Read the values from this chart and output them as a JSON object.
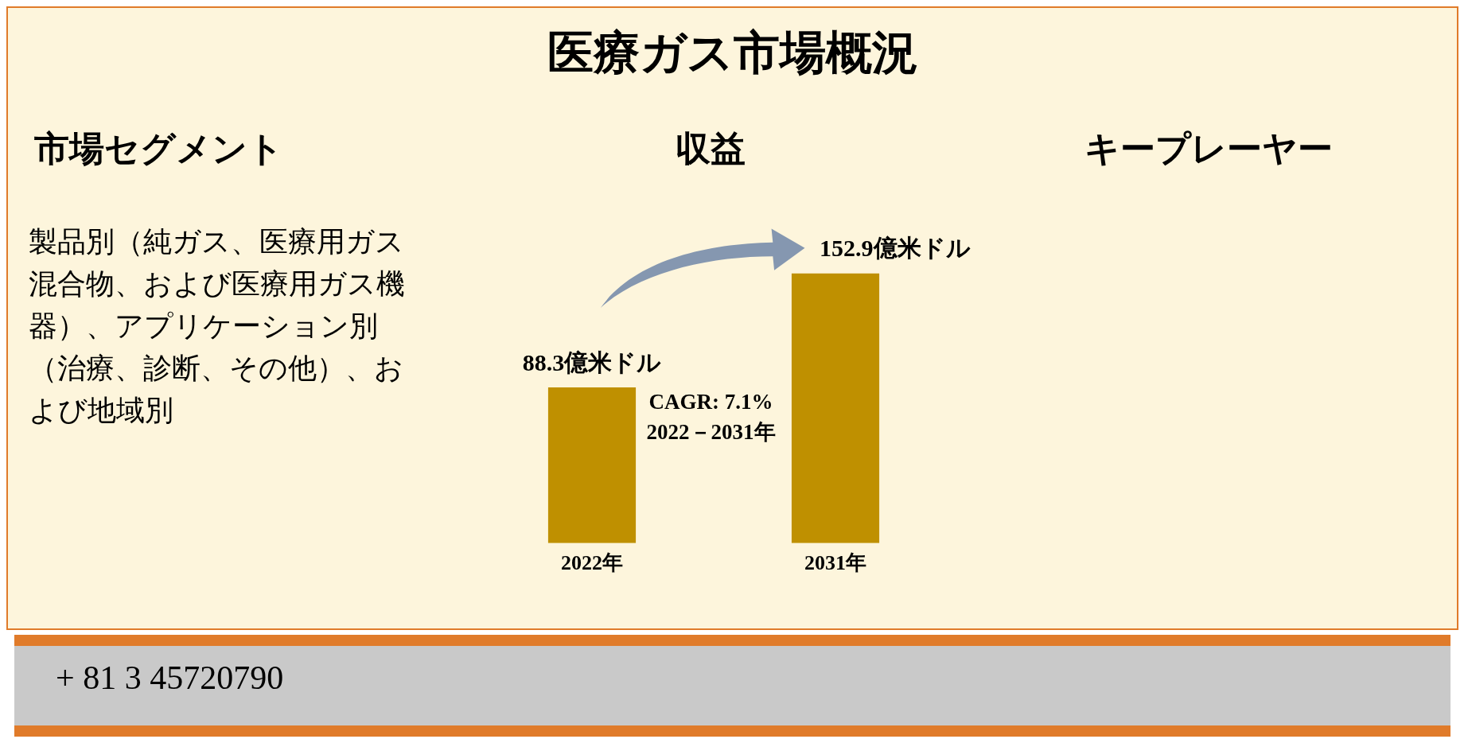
{
  "chart_data": {
    "type": "bar",
    "title": "医療ガス市場概況",
    "subtitle": "収益",
    "categories": [
      "2022年",
      "2031年"
    ],
    "values": [
      88.3,
      152.9
    ],
    "value_labels": [
      "88.3億米ドル",
      "152.9億米ドル"
    ],
    "color": "#bf9000",
    "relative": false,
    "annotations": [
      "市場セグメント",
      "製品別（純ガス、医療用ガス混合物、および医療用ガス機器）、アプリケーション別（治療、診断、その他）、および地域別",
      "キープレーヤー",
      "CAGR: 7.1%",
      "2022－2031年",
      "+ 81 3 45720790"
    ]
  }
}
